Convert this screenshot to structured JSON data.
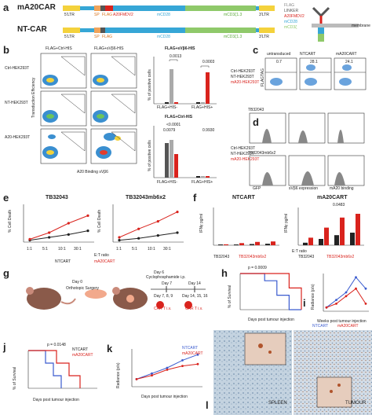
{
  "panels": {
    "a": {
      "letter": "a",
      "constructs": [
        {
          "name": "mA20CAR",
          "segments": [
            "5'LTR",
            "SP",
            "FLAG",
            "A20FMDV2",
            "mCD28",
            "mCD3ζ1.3",
            "3'LTR"
          ]
        },
        {
          "name": "NT-CAR",
          "segments": [
            "5'LTR",
            "SP",
            "FLAG",
            "mCD28",
            "mCD3ζ1.3",
            "3'LTR"
          ]
        }
      ],
      "legend": [
        "FLAG",
        "LINKER",
        "A20FMDV2",
        "mCD28",
        "mCD3ζ"
      ],
      "membrane": "membrane",
      "colors": {
        "sp": "#f0a35a",
        "flag": "#555555",
        "a20": "#d9231d",
        "cd28": "#36a6d6",
        "cd3z": "#8fc96a",
        "ltr": "#f4d23c"
      }
    },
    "b": {
      "letter": "b",
      "col_headers": [
        "FLAG+Ctrl-HIS",
        "FLAG+sVβ6-HIS"
      ],
      "row_labels": [
        "Ctrl-HEK293T",
        "NT-HEK293T",
        "A20-HEK293T"
      ],
      "yaxis": "Transduction Efficiency",
      "xaxis": "A20 Binding sVβ6",
      "top_title": "FLAG+sVβ6-HIS",
      "bottom_title": "FLAG+Ctrl-HIS",
      "top_pvalues": [
        "0.0013",
        "0.0003"
      ],
      "bottom_pvalues": [
        "<0.0001",
        "0.0079",
        "0.9930"
      ],
      "ylabel": "% of positive cells",
      "categories": [
        "FLAG+HIS-",
        "FLAG+HIS+"
      ],
      "legend": [
        "Ctrl-HEK293T",
        "NT-HEK293T",
        "mA20-HEK293T"
      ]
    },
    "c": {
      "letter": "c",
      "headers": [
        "untransduced",
        "NTCART",
        "mA20CART"
      ],
      "values": [
        "0.7",
        "28.1",
        "24.1"
      ],
      "ylabel": "FLAGTAG"
    },
    "d": {
      "letter": "d",
      "rows": [
        "TB32043",
        "TB32043mb6x2"
      ],
      "xlabels": [
        "GFP",
        "sVβ6 expression",
        "mA20 binding"
      ]
    },
    "e": {
      "letter": "e",
      "titles": [
        "TB32043",
        "TB32043mb6x2"
      ],
      "ylabel": "% Cell Death",
      "xlabel": "E:T ratio",
      "ticks": [
        "1:1",
        "5:1",
        "10:1",
        "30:1"
      ],
      "legend": [
        "NTCART",
        "mA20CART"
      ]
    },
    "f": {
      "letter": "f",
      "titles": [
        "NTCART",
        "mA20CART"
      ],
      "ylabel": "IFNγ pg/ml",
      "xlabel": "E:T ratio",
      "pvalue": "0.0483",
      "legend": [
        "TB32043",
        "TB32043mb6x2"
      ]
    },
    "g": {
      "letter": "g",
      "steps": [
        "Day 0",
        "Orthotopic Surgery",
        "Day 6",
        "Cyclophosphamide i.p.",
        "Day 7",
        "Day 14",
        "Day 7, 8, 9",
        "Day 14, 15, 16",
        "CAR T i.v."
      ]
    },
    "h": {
      "letter": "h",
      "pvalue": "p = 0.0009",
      "ylabel": "% of Survival",
      "xlabel": "Days post tumour injection"
    },
    "i": {
      "letter": "i",
      "ylabel": "Radiance (p/s)",
      "xlabel": "Weeks post tumour injection",
      "legend": [
        "NTCART",
        "mA20CART"
      ]
    },
    "j": {
      "letter": "j",
      "pvalue": "p = 0.0148",
      "ylabel": "% of Survival",
      "xlabel": "Days post tumour injection",
      "legend": [
        "NTCART",
        "mA20CART"
      ]
    },
    "k": {
      "letter": "k",
      "ylabel": "Radiance (p/s)",
      "xlabel": "Days post tumour injection",
      "legend": [
        "NTCART",
        "mA20CART"
      ]
    },
    "l": {
      "letter": "l",
      "labels": [
        "SPLEEN",
        "TUMOUR"
      ]
    }
  },
  "chart_data": [
    {
      "type": "line",
      "title": "TB32043",
      "xlabel": "E:T ratio",
      "ylabel": "% Cell Death",
      "categories": [
        "1:1",
        "5:1",
        "10:1",
        "30:1"
      ],
      "ylim": [
        0,
        40
      ],
      "series": [
        {
          "name": "NTCART",
          "values": [
            2,
            5,
            8,
            12
          ]
        },
        {
          "name": "mA20CART",
          "values": [
            3,
            10,
            20,
            28
          ]
        }
      ]
    },
    {
      "type": "line",
      "title": "TB32043mb6x2",
      "xlabel": "E:T ratio",
      "ylabel": "% Cell Death",
      "categories": [
        "1:1",
        "5:1",
        "10:1",
        "30:1"
      ],
      "ylim": [
        0,
        40
      ],
      "series": [
        {
          "name": "NTCART",
          "values": [
            2,
            4,
            7,
            10
          ]
        },
        {
          "name": "mA20CART",
          "values": [
            5,
            14,
            22,
            32
          ]
        }
      ]
    },
    {
      "type": "bar",
      "title": "mA20CART",
      "xlabel": "E:T ratio",
      "ylabel": "IFNγ pg/ml",
      "categories": [
        "1:1",
        "5:1",
        "10:1",
        "30:1"
      ],
      "series": [
        {
          "name": "TB32043",
          "values": [
            2,
            5,
            8,
            10
          ]
        },
        {
          "name": "TB32043mb6x2",
          "values": [
            6,
            14,
            22,
            25
          ]
        }
      ]
    },
    {
      "type": "line",
      "title": "",
      "xlabel": "Days post tumour injection",
      "ylabel": "% of Survival",
      "x": [
        0,
        10,
        20,
        30,
        40,
        50
      ],
      "series": [
        {
          "name": "NTCART",
          "values": [
            100,
            100,
            80,
            40,
            0,
            0
          ]
        },
        {
          "name": "mA20CART",
          "values": [
            100,
            100,
            100,
            100,
            60,
            0
          ]
        }
      ]
    }
  ]
}
